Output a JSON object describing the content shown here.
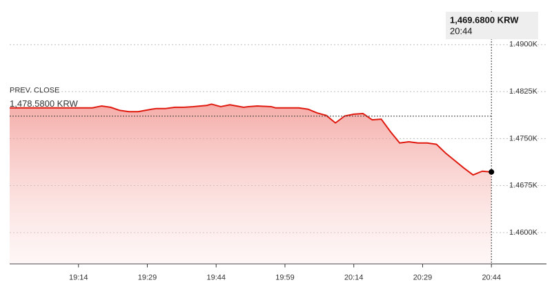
{
  "chart_data": {
    "type": "line",
    "x": [
      "18:59",
      "19:17",
      "19:19",
      "19:21",
      "19:23",
      "19:25",
      "19:27",
      "19:30",
      "19:31",
      "19:33",
      "19:35",
      "19:37",
      "19:39",
      "19:42",
      "19:43",
      "19:45",
      "19:47",
      "19:50",
      "19:51",
      "19:53",
      "19:56",
      "19:57",
      "20:02",
      "20:04",
      "20:06",
      "20:08",
      "20:10",
      "20:12",
      "20:14",
      "20:16",
      "20:18",
      "20:20",
      "20:22",
      "20:24",
      "20:26",
      "20:28",
      "20:30",
      "20:32",
      "20:34",
      "20:36",
      "20:38",
      "20:40",
      "20:42",
      "20:44"
    ],
    "series": [
      {
        "color": "#e0190f",
        "values": [
          1479.9,
          1479.9,
          1480.2,
          1480.0,
          1479.5,
          1479.3,
          1479.3,
          1479.7,
          1479.8,
          1479.8,
          1480.0,
          1480.0,
          1480.1,
          1480.3,
          1480.5,
          1480.1,
          1480.4,
          1480.0,
          1480.1,
          1480.2,
          1480.1,
          1479.9,
          1479.9,
          1479.7,
          1479.1,
          1478.7,
          1477.5,
          1478.6,
          1478.9,
          1479.0,
          1478.0,
          1478.1,
          1476.1,
          1474.3,
          1474.5,
          1474.3,
          1474.3,
          1474.1,
          1472.7,
          1471.5,
          1470.3,
          1469.2,
          1469.8,
          1469.68
        ]
      }
    ],
    "xlim": [
      "18:59",
      "20:56"
    ],
    "xticks": [
      "19:14",
      "19:29",
      "19:44",
      "19:59",
      "20:14",
      "20:29",
      "20:44"
    ],
    "ylim": [
      1455,
      1493
    ],
    "yticks": [
      {
        "value": 1460,
        "label": "1.4600K"
      },
      {
        "value": 1467.5,
        "label": "1.4675K"
      },
      {
        "value": 1475,
        "label": "1.4750K"
      },
      {
        "value": 1482.5,
        "label": "1.4825K"
      },
      {
        "value": 1490,
        "label": "1.4900K"
      }
    ],
    "grid": true,
    "prev_close": {
      "label": "PREV. CLOSE",
      "value": 1478.58,
      "value_label": "1,478.5800 KRW"
    },
    "last": {
      "value": 1469.68,
      "value_label": "1,469.6800 KRW"
    }
  }
}
